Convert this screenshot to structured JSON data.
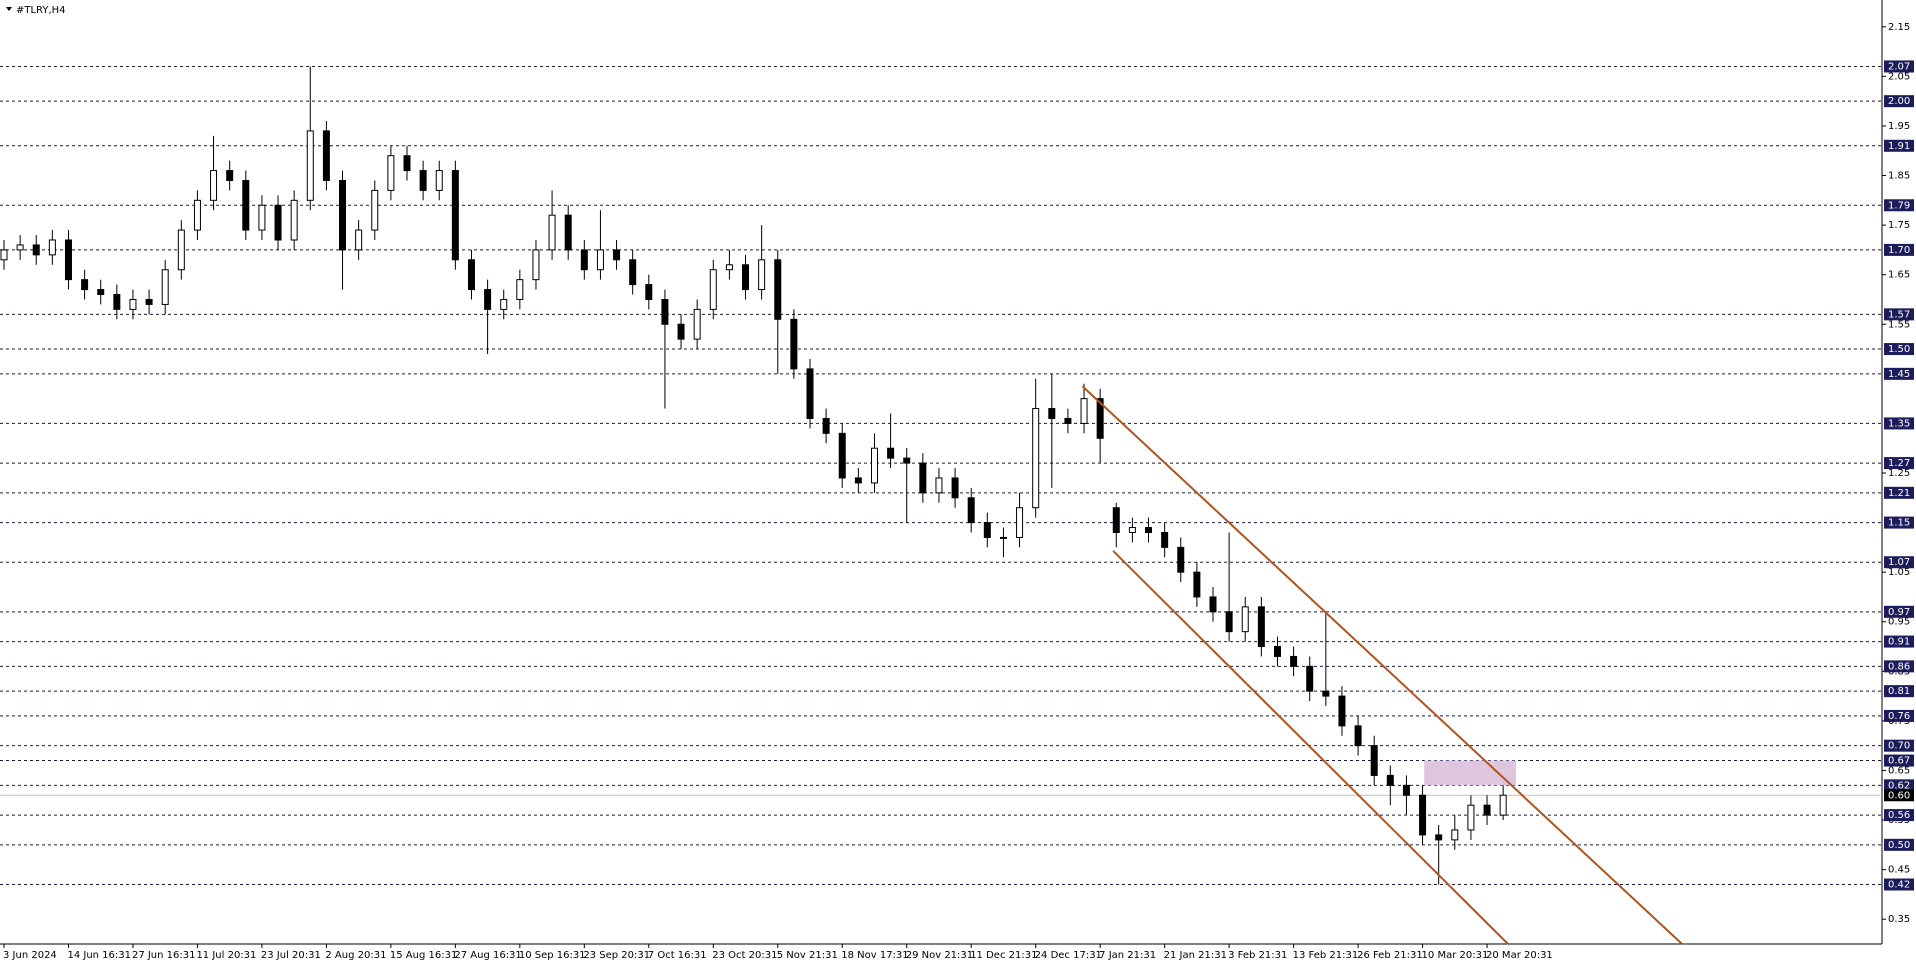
{
  "chart_data": {
    "type": "candlestick",
    "title": "#TLRY,H4",
    "categories": [
      "3 Jun 2024",
      null,
      null,
      null,
      "14 Jun 16:31",
      null,
      null,
      null,
      "27 Jun 16:31",
      null,
      null,
      null,
      "11 Jul 20:31",
      null,
      null,
      null,
      "23 Jul 20:31",
      null,
      null,
      null,
      "2 Aug 20:31",
      null,
      null,
      null,
      "15 Aug 16:31",
      null,
      null,
      null,
      "27 Aug 16:31",
      null,
      null,
      null,
      "10 Sep 16:31",
      null,
      null,
      null,
      "23 Sep 20:31",
      null,
      null,
      null,
      "7 Oct 16:31",
      null,
      null,
      null,
      "23 Oct 20:31",
      null,
      null,
      null,
      "5 Nov 21:31",
      null,
      null,
      null,
      "18 Nov 17:31",
      null,
      null,
      null,
      "29 Nov 21:31",
      null,
      null,
      null,
      "11 Dec 21:31",
      null,
      null,
      null,
      "24 Dec 17:31",
      null,
      null,
      null,
      "7 Jan 21:31",
      null,
      null,
      null,
      "21 Jan 21:31",
      null,
      null,
      null,
      "3 Feb 21:31",
      null,
      null,
      null,
      "13 Feb 21:31",
      null,
      null,
      null,
      "26 Feb 21:31",
      null,
      null,
      null,
      "10 Mar 20:31",
      null,
      null,
      null,
      "20 Mar 20:31",
      null
    ],
    "open": [
      1.68,
      1.7,
      1.71,
      1.69,
      1.72,
      1.64,
      1.62,
      1.61,
      1.58,
      1.6,
      1.59,
      1.66,
      1.74,
      1.8,
      1.86,
      1.84,
      1.74,
      1.79,
      1.72,
      1.8,
      1.94,
      1.84,
      1.7,
      1.74,
      1.82,
      1.89,
      1.86,
      1.82,
      1.86,
      1.68,
      1.62,
      1.58,
      1.6,
      1.64,
      1.7,
      1.77,
      1.7,
      1.66,
      1.7,
      1.68,
      1.63,
      1.6,
      1.55,
      1.52,
      1.58,
      1.66,
      1.67,
      1.62,
      1.68,
      1.56,
      1.46,
      1.36,
      1.33,
      1.24,
      1.23,
      1.3,
      1.28,
      1.27,
      1.21,
      1.24,
      1.2,
      1.15,
      1.12,
      1.12,
      1.18,
      1.38,
      1.36,
      1.35,
      1.4,
      1.18,
      1.13,
      1.14,
      1.13,
      1.1,
      1.05,
      1.0,
      0.97,
      0.93,
      0.98,
      0.9,
      0.88,
      0.86,
      0.81,
      0.8,
      0.74,
      0.7,
      0.64,
      0.62,
      0.6,
      0.52,
      0.51,
      0.53,
      0.58,
      0.56
    ],
    "high": [
      1.72,
      1.73,
      1.73,
      1.74,
      1.74,
      1.66,
      1.64,
      1.63,
      1.62,
      1.62,
      1.68,
      1.76,
      1.82,
      1.93,
      1.88,
      1.86,
      1.81,
      1.81,
      1.82,
      2.07,
      1.96,
      1.86,
      1.76,
      1.84,
      1.91,
      1.91,
      1.88,
      1.88,
      1.88,
      1.7,
      1.64,
      1.62,
      1.66,
      1.72,
      1.82,
      1.79,
      1.72,
      1.78,
      1.72,
      1.7,
      1.65,
      1.62,
      1.57,
      1.6,
      1.68,
      1.7,
      1.69,
      1.75,
      1.7,
      1.58,
      1.48,
      1.38,
      1.35,
      1.26,
      1.33,
      1.37,
      1.3,
      1.29,
      1.26,
      1.26,
      1.22,
      1.17,
      1.14,
      1.21,
      1.44,
      1.45,
      1.38,
      1.43,
      1.42,
      1.19,
      1.16,
      1.16,
      1.15,
      1.12,
      1.07,
      1.02,
      1.13,
      1.0,
      1.0,
      0.92,
      0.9,
      0.88,
      0.97,
      0.82,
      0.76,
      0.72,
      0.66,
      0.64,
      0.62,
      0.54,
      0.56,
      0.6,
      0.6,
      0.62
    ],
    "low": [
      1.66,
      1.68,
      1.67,
      1.67,
      1.62,
      1.6,
      1.59,
      1.56,
      1.56,
      1.57,
      1.57,
      1.64,
      1.72,
      1.78,
      1.82,
      1.72,
      1.72,
      1.7,
      1.7,
      1.78,
      1.82,
      1.62,
      1.68,
      1.72,
      1.8,
      1.84,
      1.8,
      1.8,
      1.66,
      1.6,
      1.49,
      1.56,
      1.58,
      1.62,
      1.68,
      1.68,
      1.64,
      1.64,
      1.66,
      1.61,
      1.58,
      1.38,
      1.5,
      1.5,
      1.56,
      1.64,
      1.6,
      1.6,
      1.45,
      1.44,
      1.34,
      1.31,
      1.22,
      1.21,
      1.21,
      1.26,
      1.15,
      1.19,
      1.19,
      1.18,
      1.13,
      1.1,
      1.08,
      1.1,
      1.16,
      1.22,
      1.33,
      1.33,
      1.27,
      1.1,
      1.11,
      1.11,
      1.08,
      1.03,
      0.98,
      0.95,
      0.91,
      0.91,
      0.88,
      0.86,
      0.84,
      0.79,
      0.78,
      0.72,
      0.68,
      0.62,
      0.58,
      0.56,
      0.5,
      0.42,
      0.49,
      0.51,
      0.54,
      0.55
    ],
    "close": [
      1.7,
      1.71,
      1.69,
      1.72,
      1.64,
      1.62,
      1.61,
      1.58,
      1.6,
      1.59,
      1.66,
      1.74,
      1.8,
      1.86,
      1.84,
      1.74,
      1.79,
      1.72,
      1.8,
      1.94,
      1.84,
      1.7,
      1.74,
      1.82,
      1.89,
      1.86,
      1.82,
      1.86,
      1.68,
      1.62,
      1.58,
      1.6,
      1.64,
      1.7,
      1.77,
      1.7,
      1.66,
      1.7,
      1.68,
      1.63,
      1.6,
      1.55,
      1.52,
      1.58,
      1.66,
      1.67,
      1.62,
      1.68,
      1.56,
      1.46,
      1.36,
      1.33,
      1.24,
      1.23,
      1.3,
      1.28,
      1.27,
      1.21,
      1.24,
      1.2,
      1.15,
      1.12,
      1.12,
      1.18,
      1.38,
      1.36,
      1.35,
      1.4,
      1.32,
      1.13,
      1.14,
      1.13,
      1.1,
      1.05,
      1.0,
      0.97,
      0.93,
      0.98,
      0.9,
      0.88,
      0.86,
      0.81,
      0.8,
      0.74,
      0.7,
      0.64,
      0.62,
      0.6,
      0.52,
      0.51,
      0.53,
      0.58,
      0.56,
      0.6
    ],
    "ylim": [
      0.3,
      2.2
    ],
    "yticks": [
      2.15,
      2.05,
      1.95,
      1.85,
      1.75,
      1.65,
      1.55,
      1.25,
      1.05,
      0.95,
      0.85,
      0.75,
      0.65,
      0.55,
      0.45,
      0.35
    ],
    "levels": [
      2.07,
      {
        "value": 2,
        "label": "2.00"
      },
      1.91,
      1.79,
      {
        "value": 1.7,
        "label": "1.70"
      },
      1.57,
      {
        "value": 1.5,
        "label": "1.50"
      },
      1.45,
      1.35,
      1.27,
      1.21,
      1.15,
      1.07,
      0.97,
      0.91,
      0.86,
      0.81,
      0.76,
      {
        "value": 0.7,
        "label": "0.70"
      },
      0.67,
      0.62,
      0.56,
      {
        "value": 0.5,
        "label": "0.50"
      },
      0.42
    ],
    "current_price": {
      "value": 0.6,
      "label": "0.60"
    },
    "channel": {
      "color": "#b0541f",
      "lines": [
        {
          "x": [
            66.9,
            104.1
          ],
          "y": [
            1.425,
            0.3
          ]
        },
        {
          "x": [
            68.8,
            93.3
          ],
          "y": [
            1.093,
            0.3
          ]
        }
      ]
    },
    "zone": {
      "color": "#d9bcd9",
      "x": [
        88.1,
        93.8
      ],
      "y": [
        0.62,
        0.67
      ]
    }
  }
}
